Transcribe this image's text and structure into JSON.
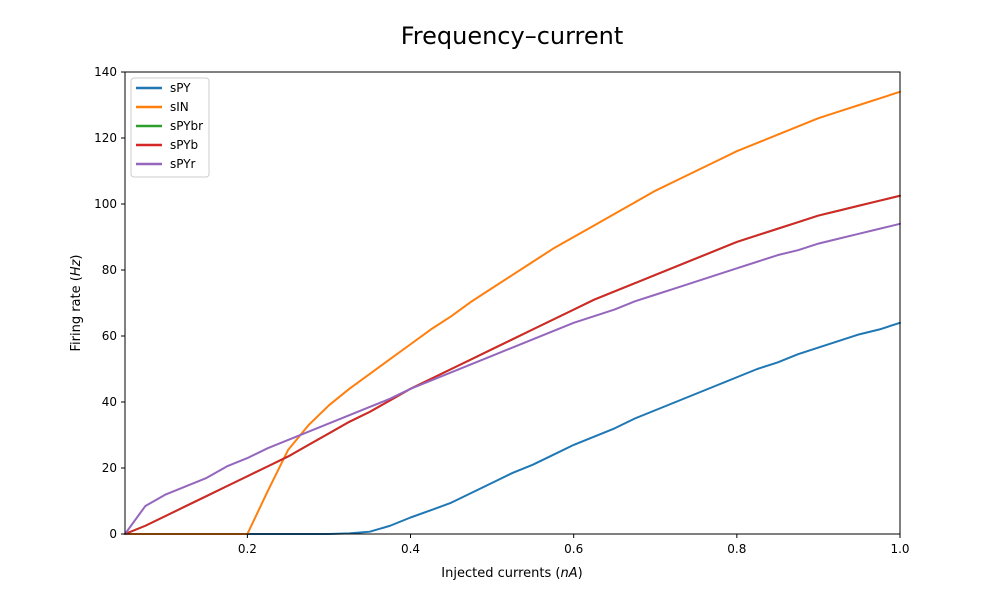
{
  "chart_data": {
    "type": "line",
    "title": "Frequency–current",
    "xlabel_prefix": "Injected currents (",
    "xlabel_unit": "nA",
    "xlabel_suffix": ")",
    "ylabel_prefix": "Firing rate (",
    "ylabel_unit": "Hz",
    "ylabel_suffix": ")",
    "xlim": [
      0.05,
      1.0
    ],
    "ylim": [
      0,
      140
    ],
    "xticks": [
      0.2,
      0.4,
      0.6,
      0.8,
      1.0
    ],
    "xtick_labels": [
      "0.2",
      "0.4",
      "0.6",
      "0.8",
      "1.0"
    ],
    "yticks": [
      0,
      20,
      40,
      60,
      80,
      100,
      120,
      140
    ],
    "ytick_labels": [
      "0",
      "20",
      "40",
      "60",
      "80",
      "100",
      "120",
      "140"
    ],
    "grid": false,
    "legend_position": "top-left",
    "x": [
      0.05,
      0.075,
      0.1,
      0.125,
      0.15,
      0.175,
      0.2,
      0.225,
      0.25,
      0.275,
      0.3,
      0.325,
      0.35,
      0.375,
      0.4,
      0.425,
      0.45,
      0.475,
      0.5,
      0.525,
      0.55,
      0.575,
      0.6,
      0.625,
      0.65,
      0.675,
      0.7,
      0.725,
      0.75,
      0.775,
      0.8,
      0.825,
      0.85,
      0.875,
      0.9,
      0.925,
      0.95,
      0.975,
      1.0
    ],
    "series": [
      {
        "name": "sPY",
        "color": "#1f77b4",
        "values": [
          0,
          0,
          0,
          0,
          0,
          0,
          0,
          0,
          0,
          0,
          0,
          0.2,
          0.7,
          2.5,
          5.0,
          7.2,
          9.5,
          12.5,
          15.5,
          18.5,
          21.0,
          24.0,
          27.0,
          29.5,
          32.0,
          35.0,
          37.5,
          40.0,
          42.5,
          45.0,
          47.5,
          50.0,
          52.0,
          54.5,
          56.5,
          58.5,
          60.5,
          62.0,
          64.0
        ]
      },
      {
        "name": "sIN",
        "color": "#ff7f0e",
        "values": [
          0,
          0,
          0,
          0,
          0,
          0,
          0,
          13.0,
          25.5,
          33.0,
          39.0,
          44.0,
          48.5,
          53.0,
          57.5,
          62.0,
          66.0,
          70.5,
          74.5,
          78.5,
          82.5,
          86.5,
          90.0,
          93.5,
          97.0,
          100.5,
          104.0,
          107.0,
          110.0,
          113.0,
          116.0,
          118.5,
          121.0,
          123.5,
          126.0,
          128.0,
          130.0,
          132.0,
          134.0
        ]
      },
      {
        "name": "sPYbr",
        "color": "#2ca02c",
        "values": [
          0,
          2.5,
          5.5,
          8.5,
          11.5,
          14.5,
          17.5,
          20.5,
          23.5,
          27.0,
          30.5,
          34.0,
          37.0,
          40.5,
          44.0,
          47.0,
          50.0,
          53.0,
          56.0,
          59.0,
          62.0,
          65.0,
          68.0,
          71.0,
          73.5,
          76.0,
          78.5,
          81.0,
          83.5,
          86.0,
          88.5,
          90.5,
          92.5,
          94.5,
          96.5,
          98.0,
          99.5,
          101.0,
          102.5
        ]
      },
      {
        "name": "sPYb",
        "color": "#d62728",
        "values": [
          0,
          2.5,
          5.5,
          8.5,
          11.5,
          14.5,
          17.5,
          20.5,
          23.5,
          27.0,
          30.5,
          34.0,
          37.0,
          40.5,
          44.0,
          47.0,
          50.0,
          53.0,
          56.0,
          59.0,
          62.0,
          65.0,
          68.0,
          71.0,
          73.5,
          76.0,
          78.5,
          81.0,
          83.5,
          86.0,
          88.5,
          90.5,
          92.5,
          94.5,
          96.5,
          98.0,
          99.5,
          101.0,
          102.5
        ]
      },
      {
        "name": "sPYr",
        "color": "#9467bd",
        "values": [
          0,
          8.5,
          12.0,
          14.5,
          17.0,
          20.5,
          23.0,
          26.0,
          28.5,
          31.0,
          33.5,
          36.0,
          38.5,
          41.0,
          44.0,
          46.5,
          49.0,
          51.5,
          54.0,
          56.5,
          59.0,
          61.5,
          64.0,
          66.0,
          68.0,
          70.5,
          72.5,
          74.5,
          76.5,
          78.5,
          80.5,
          82.5,
          84.5,
          86.0,
          88.0,
          89.5,
          91.0,
          92.5,
          94.0
        ]
      }
    ]
  }
}
